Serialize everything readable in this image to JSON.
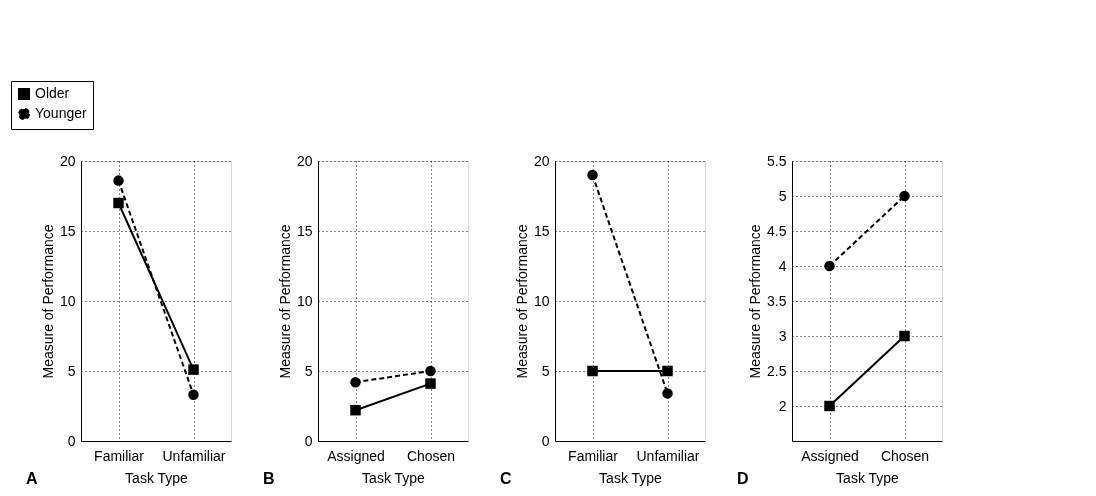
{
  "chart_data": [
    {
      "type": "line",
      "categories": [
        "Familiar",
        "Unfamiliar"
      ],
      "xlabel": "Task Type",
      "ylabel": "Measure of Performance",
      "ylim": [
        0,
        20
      ],
      "yticks": [
        0,
        5,
        10,
        15,
        20
      ],
      "grid": true,
      "legend": "top left",
      "annotations": [
        "A"
      ],
      "series": [
        {
          "name": "Older",
          "color": "#000000",
          "marker": "square",
          "line_style": "solid",
          "values": [
            17,
            5.1
          ]
        },
        {
          "name": "Younger",
          "color": "#000000",
          "marker": "circle",
          "line_style": "dashed",
          "values": [
            18.6,
            3.3
          ]
        }
      ]
    },
    {
      "type": "line",
      "categories": [
        "Assigned",
        "Chosen"
      ],
      "xlabel": "Task Type",
      "ylabel": "Measure of Performance",
      "ylim": [
        0,
        20
      ],
      "yticks": [
        0,
        5,
        10,
        15,
        20
      ],
      "grid": true,
      "annotations": [
        "B"
      ],
      "series": [
        {
          "color": "#000000",
          "marker": "square",
          "line_style": "solid",
          "values": [
            2.2,
            4.1
          ]
        },
        {
          "color": "#000000",
          "marker": "circle",
          "line_style": "dashed",
          "values": [
            4.2,
            5.0
          ]
        }
      ]
    },
    {
      "type": "line",
      "categories": [
        "Familiar",
        "Unfamiliar"
      ],
      "xlabel": "Task Type",
      "ylabel": "Measure of Performance",
      "ylim": [
        0,
        20
      ],
      "yticks": [
        0,
        5,
        10,
        15,
        20
      ],
      "grid": true,
      "annotations": [
        "C"
      ],
      "series": [
        {
          "color": "#000000",
          "marker": "square",
          "line_style": "solid",
          "values": [
            5.0,
            5.0
          ]
        },
        {
          "color": "#000000",
          "marker": "circle",
          "line_style": "dashed",
          "values": [
            19,
            3.4
          ]
        }
      ]
    },
    {
      "type": "line",
      "categories": [
        "Assigned",
        "Chosen"
      ],
      "xlabel": "Task Type",
      "ylabel": "Measure of Performance",
      "ylim": [
        1.5,
        5.5
      ],
      "yticks": [
        2,
        2.5,
        3,
        3.5,
        4,
        4.5,
        5,
        5.5
      ],
      "grid": true,
      "annotations": [
        "D"
      ],
      "series": [
        {
          "color": "#000000",
          "marker": "square",
          "line_style": "solid",
          "values": [
            2,
            3
          ]
        },
        {
          "color": "#000000",
          "marker": "circle",
          "line_style": "dashed",
          "values": [
            4,
            5
          ]
        }
      ]
    }
  ]
}
